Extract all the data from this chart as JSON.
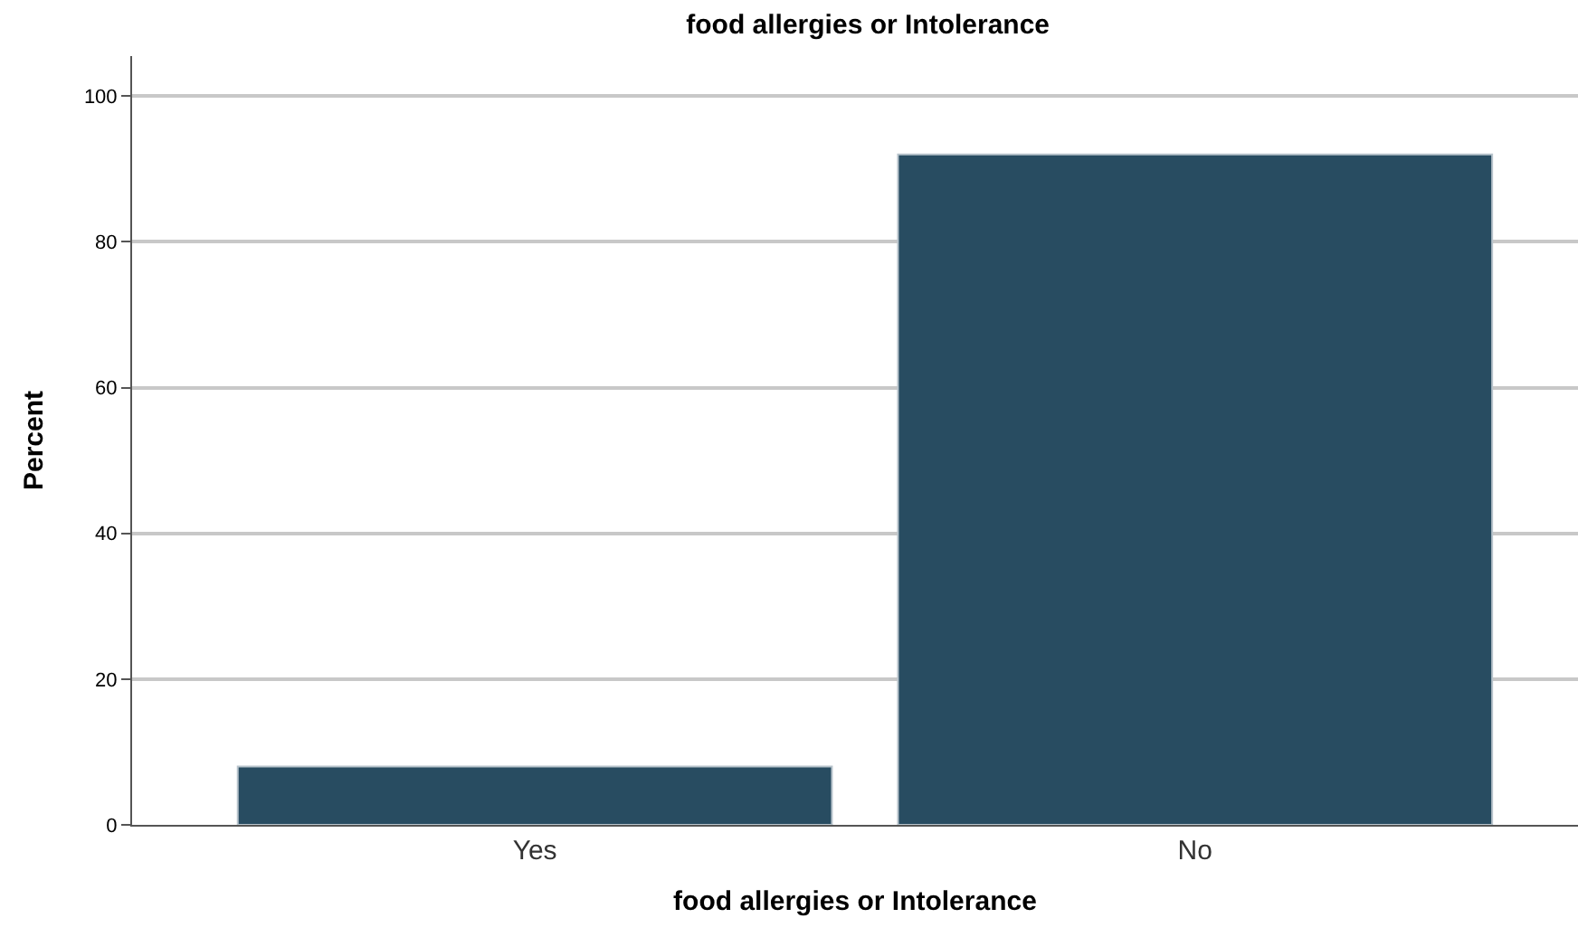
{
  "chart_data": {
    "type": "bar",
    "title": "food allergies or Intolerance",
    "xlabel": "food allergies or Intolerance",
    "ylabel": "Percent",
    "categories": [
      "Yes",
      "No"
    ],
    "values": [
      8,
      92
    ],
    "color": "#284c61",
    "ylim": [
      0,
      105.5
    ],
    "yticks": [
      0,
      20,
      40,
      60,
      80,
      100
    ],
    "grid": "y"
  }
}
